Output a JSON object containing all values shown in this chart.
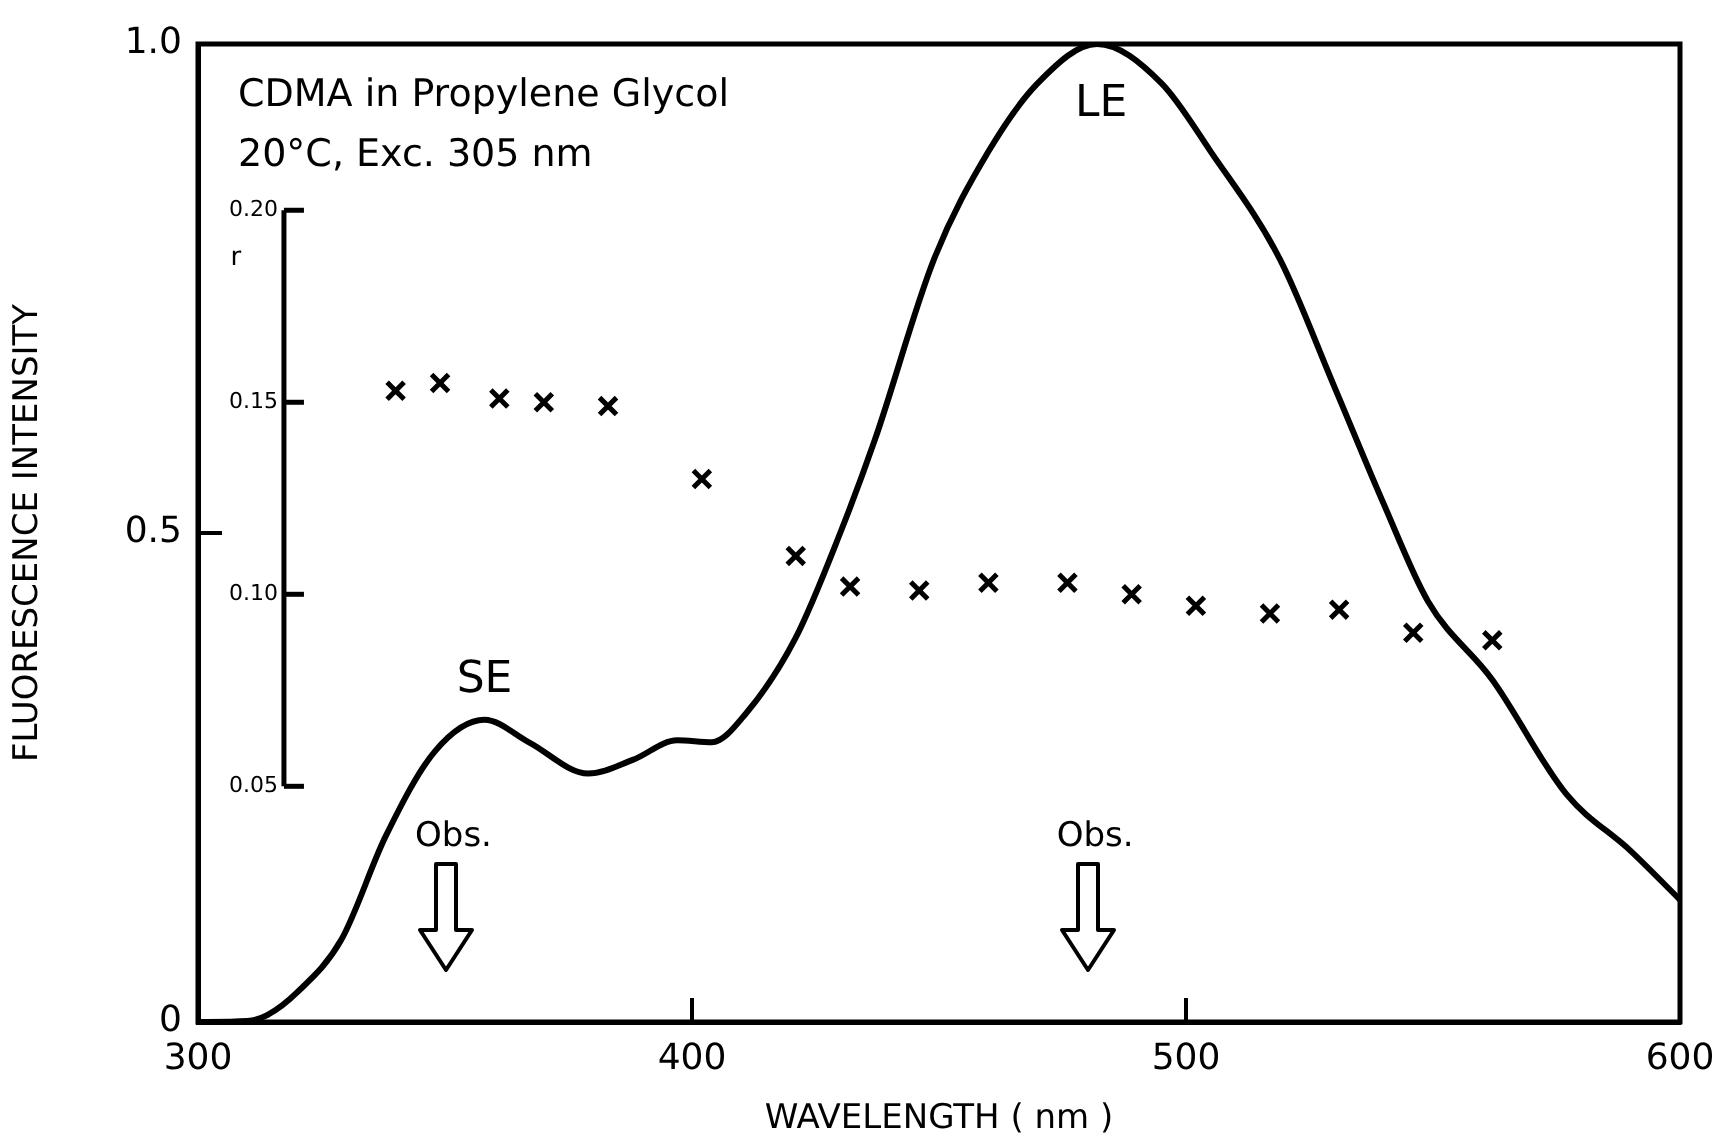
{
  "chart_data": {
    "type": "line",
    "xlabel": "WAVELENGTH ( nm )",
    "ylabel": "FLUORESCENCE INTENSITY",
    "y2label": "r",
    "xlim": [
      300,
      600
    ],
    "xticks": [
      300,
      400,
      500,
      600
    ],
    "ylim": [
      0,
      1
    ],
    "yticks": [
      0,
      {
        "value": 0.5,
        "label": "0.5"
      },
      {
        "value": 1,
        "label": "1.0"
      }
    ],
    "y2lim": [
      0.05,
      0.2
    ],
    "y2ticks": [
      {
        "value": 0.05,
        "label": "0.05"
      },
      {
        "value": 0.1,
        "label": "0.10"
      },
      {
        "value": 0.15,
        "label": "0.15"
      },
      {
        "value": 0.2,
        "label": "0.20"
      }
    ],
    "series": [
      {
        "color": "#000000",
        "x": [
          300,
          310,
          314,
          320,
          329,
          338,
          348,
          358,
          367,
          379,
          388,
          397,
          404,
          411,
          421,
          430,
          437,
          449,
          460,
          470,
          482,
          495,
          505,
          519,
          530,
          540,
          549,
          562,
          577,
          590,
          600
        ],
        "values": [
          0,
          0.001,
          0.007,
          0.03,
          0.084,
          0.19,
          0.277,
          0.309,
          0.286,
          0.254,
          0.268,
          0.288,
          0.286,
          0.316,
          0.393,
          0.5,
          0.595,
          0.78,
          0.89,
          0.96,
          1.0,
          0.96,
          0.89,
          0.78,
          0.65,
          0.53,
          0.43,
          0.35,
          0.233,
          0.175,
          0.125
        ]
      },
      {
        "type": "scatter",
        "axis": "y2",
        "marker": "cross",
        "color": "#000000",
        "x": [
          340,
          349,
          361,
          370,
          383,
          402,
          421,
          432,
          446,
          460,
          476,
          489,
          502,
          517,
          531,
          546,
          562
        ],
        "values": [
          0.153,
          0.155,
          0.151,
          0.15,
          0.149,
          0.13,
          0.11,
          0.102,
          0.101,
          0.103,
          0.103,
          0.1,
          0.097,
          0.095,
          0.096,
          0.09,
          0.088
        ]
      }
    ],
    "line_style": "solid",
    "grid": false,
    "legend": false,
    "annotations": [
      "CDMA in Propylene Glycol",
      "20°C, Exc. 305 nm",
      {
        "text": "LE",
        "x": 482,
        "y": 1.0
      },
      {
        "text": "SE",
        "x": 358,
        "y": 0.309
      },
      "Obs.",
      "Obs."
    ]
  }
}
